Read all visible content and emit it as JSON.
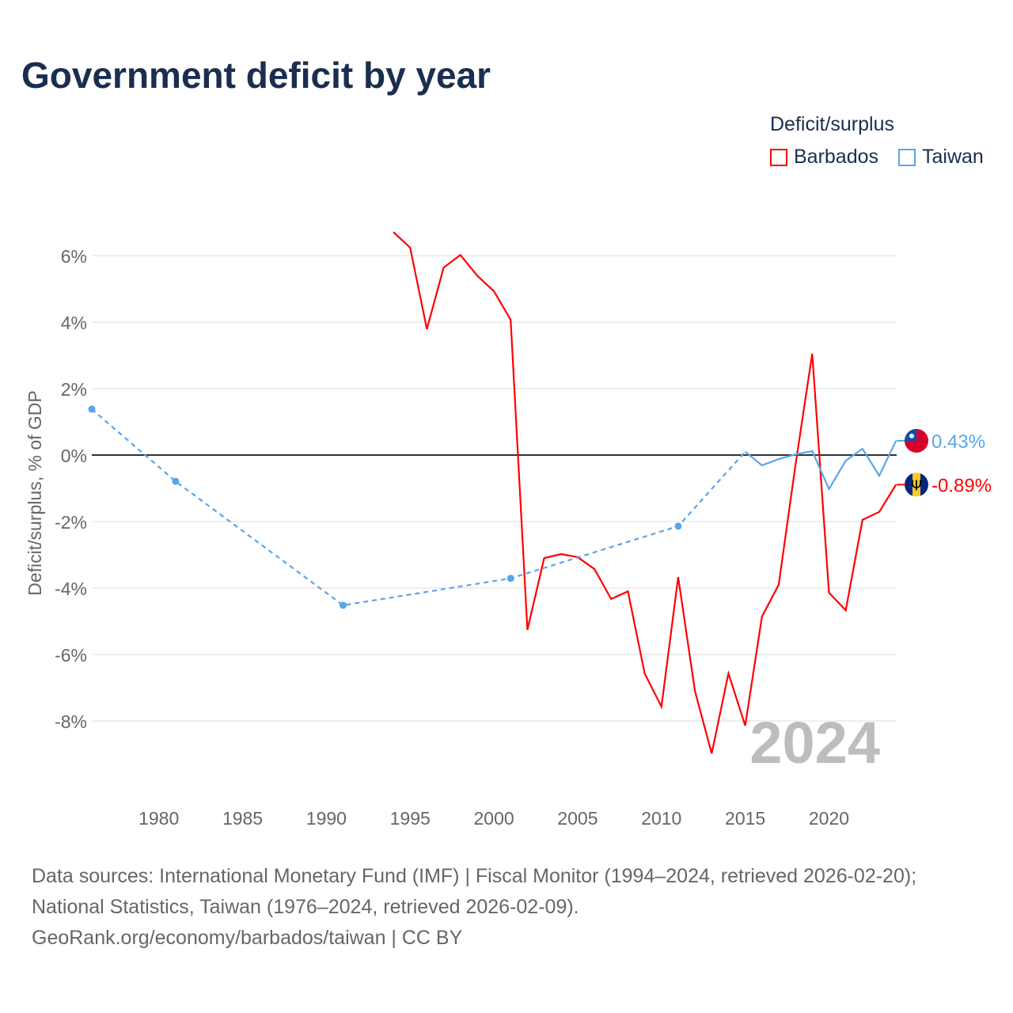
{
  "title": "Government deficit by year",
  "legend": {
    "title": "Deficit/surplus",
    "items": [
      "Barbados",
      "Taiwan"
    ]
  },
  "footer": [
    "Data sources: International Monetary Fund (IMF) | Fiscal Monitor (1994–2024, retrieved 2026-02-20);",
    "National Statistics, Taiwan (1976–2024, retrieved 2026-02-09).",
    "GeoRank.org/economy/barbados/taiwan | CC BY"
  ],
  "chart_data": {
    "type": "line",
    "title": "Government deficit by year",
    "ylabel": "Deficit/surplus, % of GDP",
    "xlabel": "",
    "xlim": [
      1976,
      2024
    ],
    "ylim": [
      -10,
      7
    ],
    "xticks": [
      1980,
      1985,
      1990,
      1995,
      2000,
      2005,
      2010,
      2015,
      2020
    ],
    "yticks": [
      -8,
      -6,
      -4,
      -2,
      0,
      2,
      4,
      6
    ],
    "ytick_labels": [
      "-8%",
      "-6%",
      "-4%",
      "-2%",
      "0%",
      "2%",
      "4%",
      "6%"
    ],
    "year_watermark": "2024",
    "series": [
      {
        "name": "Barbados",
        "color": "#ff0000",
        "end_label": "-0.89%",
        "x": [
          1994,
          1995,
          1996,
          1997,
          1998,
          1999,
          2000,
          2001,
          2002,
          2003,
          2004,
          2005,
          2006,
          2007,
          2008,
          2009,
          2010,
          2011,
          2012,
          2013,
          2014,
          2015,
          2016,
          2017,
          2018,
          2019,
          2020,
          2021,
          2022,
          2023,
          2024
        ],
        "y": [
          6.71,
          6.24,
          3.79,
          5.64,
          6.02,
          5.4,
          4.93,
          4.07,
          -5.26,
          -3.1,
          -2.98,
          -3.07,
          -3.43,
          -4.33,
          -4.1,
          -6.57,
          -7.57,
          -3.67,
          -7.1,
          -8.98,
          -6.57,
          -8.14,
          -4.86,
          -3.9,
          -0.3,
          3.05,
          -4.14,
          -4.67,
          -1.95,
          -1.71,
          -0.89
        ]
      },
      {
        "name": "Taiwan",
        "color": "#5aa5ea",
        "end_label": "0.43%",
        "x": [
          1976,
          1981,
          1991,
          2001,
          2011,
          2015,
          2016,
          2017,
          2018,
          2019,
          2020,
          2021,
          2022,
          2023,
          2024
        ],
        "y": [
          1.38,
          -0.79,
          -4.52,
          -3.71,
          -2.14,
          0.1,
          -0.31,
          -0.12,
          0.02,
          0.12,
          -1.02,
          -0.17,
          0.19,
          -0.62,
          0.43
        ],
        "sparse_until": 2015
      }
    ]
  }
}
